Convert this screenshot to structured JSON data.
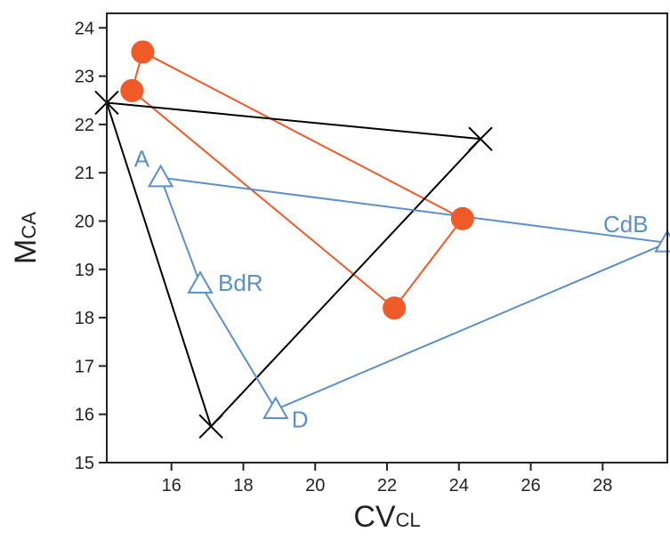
{
  "chart_data": {
    "type": "scatter",
    "title": "",
    "xlabel": {
      "main": "CV",
      "sub": "CL"
    },
    "ylabel": {
      "main": "M",
      "sub": "CA"
    },
    "xlim": [
      14.2,
      29.8
    ],
    "ylim": [
      15,
      24.3
    ],
    "x_ticks": [
      16,
      18,
      20,
      22,
      24,
      26,
      28
    ],
    "y_ticks": [
      15,
      16,
      17,
      18,
      19,
      20,
      21,
      22,
      23,
      24
    ],
    "grid": false,
    "legend": "none",
    "series": [
      {
        "marker": "circle",
        "color": "#f05a28",
        "closed": true,
        "points": [
          {
            "x": 15.2,
            "y": 23.5
          },
          {
            "x": 24.1,
            "y": 20.05
          },
          {
            "x": 22.2,
            "y": 18.2
          },
          {
            "x": 14.9,
            "y": 22.7
          }
        ]
      },
      {
        "marker": "cross",
        "color": "#000000",
        "closed": true,
        "points": [
          {
            "x": 14.2,
            "y": 22.45
          },
          {
            "x": 24.6,
            "y": 21.7
          },
          {
            "x": 17.1,
            "y": 15.75
          }
        ]
      },
      {
        "marker": "triangle",
        "color": "#5b8fc9",
        "closed": false,
        "points": [
          {
            "x": 15.7,
            "y": 20.9,
            "label": "A"
          },
          {
            "x": 29.8,
            "y": 19.55,
            "label": "CdB"
          },
          {
            "x": 18.9,
            "y": 16.1,
            "label": "D"
          },
          {
            "x": 16.8,
            "y": 18.7,
            "label": "BdR"
          },
          {
            "x": 15.7,
            "y": 20.9,
            "label": ""
          }
        ]
      }
    ]
  }
}
